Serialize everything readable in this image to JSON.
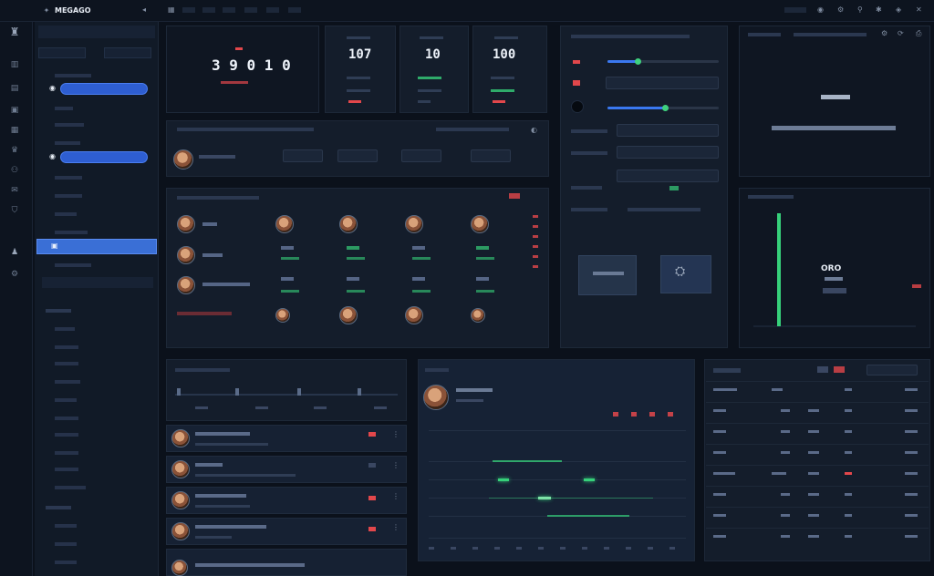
{
  "app": {
    "title": "MEGAGO",
    "brand_color": "#3a78f0"
  },
  "scoreboard": {
    "main_score": "3 9 0 1 0",
    "stats": [
      {
        "value": "107"
      },
      {
        "value": "10"
      },
      {
        "value": "100"
      }
    ]
  },
  "chart": {
    "label": "ORO"
  },
  "colors": {
    "accent": "#3a78f0",
    "positive": "#36d07a",
    "negative": "#e2474b",
    "background": "#0b111b",
    "panel": "#141d2b"
  },
  "chart_data": {
    "type": "bar",
    "categories": [
      ""
    ],
    "values": [
      1
    ],
    "title": "",
    "xlabel": "",
    "ylabel": ""
  }
}
